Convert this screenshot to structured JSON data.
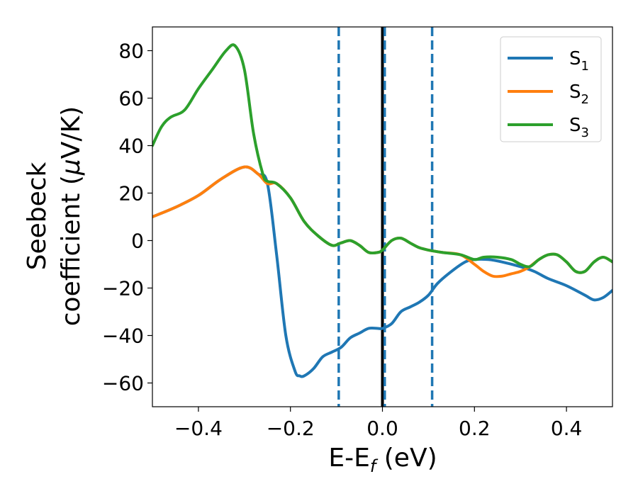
{
  "chart_data": {
    "type": "line",
    "title": "",
    "xlabel": {
      "main": "E-E",
      "sub": "f",
      "unit": " (eV)"
    },
    "ylabel": {
      "line1": "Seebeck",
      "line2_prefix": "coefficient  (",
      "mu": "μ",
      "line2_suffix": "V/K)"
    },
    "xlim": [
      -0.5,
      0.5
    ],
    "ylim": [
      -70,
      90
    ],
    "xticks": [
      -0.4,
      -0.2,
      0.0,
      0.2,
      0.4
    ],
    "xtick_labels": [
      "−0.4",
      "−0.2",
      "0.0",
      "0.2",
      "0.4"
    ],
    "yticks": [
      -60,
      -40,
      -20,
      0,
      20,
      40,
      60,
      80
    ],
    "ytick_labels": [
      "−60",
      "−40",
      "−20",
      "0",
      "20",
      "40",
      "60",
      "80"
    ],
    "grid": false,
    "legend_position": "top-right",
    "vertical_lines": [
      {
        "x": -0.095,
        "style": "dashed",
        "color": "#1f77b4"
      },
      {
        "x": 0.0,
        "style": "solid",
        "color": "#000000"
      },
      {
        "x": 0.005,
        "style": "dashed",
        "color": "#1f77b4"
      },
      {
        "x": 0.108,
        "style": "dashed",
        "color": "#1f77b4"
      }
    ],
    "series": [
      {
        "name": "S",
        "sub": "1",
        "color": "#1f77b4",
        "x": [
          -0.5,
          -0.45,
          -0.4,
          -0.35,
          -0.3,
          -0.27,
          -0.25,
          -0.23,
          -0.21,
          -0.19,
          -0.18,
          -0.17,
          -0.15,
          -0.13,
          -0.11,
          -0.09,
          -0.07,
          -0.05,
          -0.03,
          -0.01,
          0.0,
          0.02,
          0.04,
          0.06,
          0.08,
          0.1,
          0.12,
          0.15,
          0.18,
          0.2,
          0.23,
          0.26,
          0.3,
          0.33,
          0.36,
          0.4,
          0.44,
          0.46,
          0.48,
          0.5
        ],
        "y": [
          10,
          14,
          19,
          26,
          31,
          28,
          24,
          -6,
          -40,
          -55,
          -57,
          -57,
          -54,
          -49,
          -47,
          -45,
          -41,
          -39,
          -37,
          -37,
          -37,
          -35,
          -30,
          -28,
          -26,
          -23,
          -18,
          -13,
          -9,
          -8,
          -8,
          -9,
          -11,
          -13,
          -16,
          -19,
          -23,
          -25,
          -24,
          -21
        ]
      },
      {
        "name": "S",
        "sub": "2",
        "color": "#ff7f0e",
        "x": [
          -0.5,
          -0.45,
          -0.4,
          -0.35,
          -0.3,
          -0.27,
          -0.25,
          -0.23,
          -0.2,
          -0.17,
          -0.14,
          -0.11,
          -0.09,
          -0.07,
          -0.05,
          -0.03,
          -0.01,
          0.0,
          0.02,
          0.04,
          0.06,
          0.08,
          0.1,
          0.13,
          0.17,
          0.2,
          0.22,
          0.24,
          0.26,
          0.28,
          0.3,
          0.32,
          0.34,
          0.36,
          0.38,
          0.4,
          0.42,
          0.44,
          0.46,
          0.48,
          0.5
        ],
        "y": [
          10,
          14,
          19,
          26,
          31,
          28,
          24,
          24,
          18,
          8,
          2,
          -2,
          -1,
          0,
          -2,
          -5,
          -5,
          -4,
          0,
          1,
          -1,
          -3,
          -4,
          -5,
          -6,
          -10,
          -13,
          -15,
          -15,
          -14,
          -13,
          -11,
          -8,
          -6,
          -6,
          -9,
          -13,
          -13,
          -9,
          -7,
          -9
        ]
      },
      {
        "name": "S",
        "sub": "3",
        "color": "#2ca02c",
        "x": [
          -0.5,
          -0.48,
          -0.46,
          -0.43,
          -0.4,
          -0.37,
          -0.34,
          -0.32,
          -0.3,
          -0.28,
          -0.26,
          -0.25,
          -0.23,
          -0.2,
          -0.17,
          -0.14,
          -0.11,
          -0.09,
          -0.07,
          -0.05,
          -0.03,
          -0.01,
          0.0,
          0.02,
          0.04,
          0.06,
          0.08,
          0.1,
          0.13,
          0.17,
          0.2,
          0.22,
          0.25,
          0.28,
          0.3,
          0.32,
          0.34,
          0.36,
          0.38,
          0.4,
          0.42,
          0.44,
          0.46,
          0.48,
          0.5
        ],
        "y": [
          40,
          48,
          52,
          55,
          64,
          72,
          80,
          82,
          72,
          45,
          28,
          25,
          24,
          18,
          8,
          2,
          -2,
          -1,
          0,
          -2,
          -5,
          -5,
          -4,
          0,
          1,
          -1,
          -3,
          -4,
          -5,
          -6,
          -8,
          -7,
          -7,
          -8,
          -10,
          -11,
          -8,
          -6,
          -6,
          -9,
          -13,
          -13,
          -9,
          -7,
          -9
        ]
      }
    ]
  }
}
